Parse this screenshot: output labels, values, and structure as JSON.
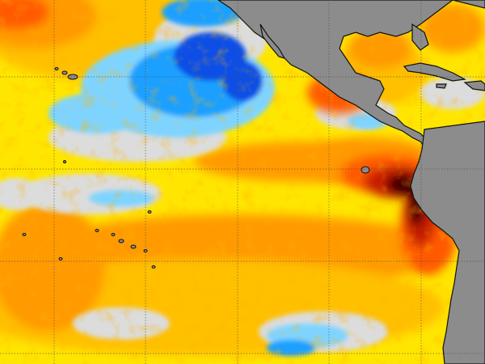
{
  "map": {
    "colors": {
      "land": "#8c8c8c",
      "coastline": "#111111",
      "graticule": "#4a4a4a",
      "neutral": "#dcdcdc",
      "warm_light": "#ffe600",
      "warm_mid": "#ffc000",
      "warm": "#ff9a00",
      "hot": "#ff5a00",
      "very_hot": "#c81e00",
      "extreme": "#3a0000",
      "cool": "#7fd4ff",
      "cold": "#1ea0ff",
      "very_cold": "#0a50e6"
    }
  }
}
